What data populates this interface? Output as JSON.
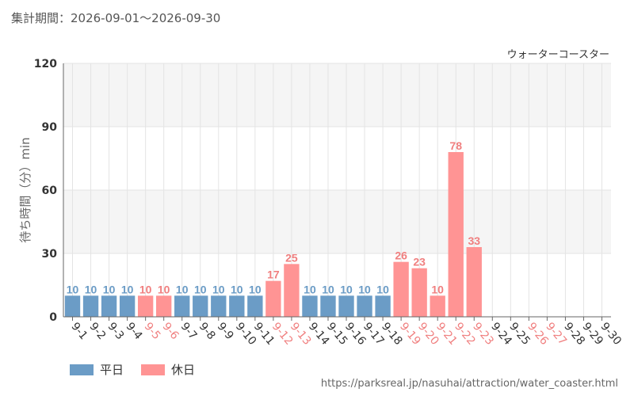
{
  "header": {
    "period": "集計期間：2026-09-01～2026-09-30"
  },
  "footer": {
    "source_url": "https://parksreal.jp/nasuhai/attraction/water_coaster.html"
  },
  "legend": {
    "weekday_label": "平日",
    "holiday_label": "休日"
  },
  "colors": {
    "weekday": "#6b9cc6",
    "holiday": "#ff9494",
    "holiday_text": "#f07f7f",
    "band": "#f5f5f5",
    "grid": "#e4e4e4"
  },
  "chart_data": {
    "type": "bar",
    "title": "ウォーターコースター",
    "ylabel": "待ち時間（分）min",
    "ylim": [
      0,
      120
    ],
    "yticks": [
      0,
      30,
      60,
      90,
      120
    ],
    "grid": true,
    "legend_position": "bottom-left",
    "categories": [
      "9-1",
      "9-2",
      "9-3",
      "9-4",
      "9-5",
      "9-6",
      "9-7",
      "9-8",
      "9-9",
      "9-10",
      "9-11",
      "9-12",
      "9-13",
      "9-14",
      "9-15",
      "9-16",
      "9-17",
      "9-18",
      "9-19",
      "9-20",
      "9-21",
      "9-22",
      "9-23",
      "9-24",
      "9-25",
      "9-26",
      "9-27",
      "9-28",
      "9-29",
      "9-30"
    ],
    "values": [
      10,
      10,
      10,
      10,
      10,
      10,
      10,
      10,
      10,
      10,
      10,
      17,
      25,
      10,
      10,
      10,
      10,
      10,
      26,
      23,
      10,
      78,
      33,
      null,
      null,
      null,
      null,
      null,
      null,
      null
    ],
    "day_type": [
      "weekday",
      "weekday",
      "weekday",
      "weekday",
      "holiday",
      "holiday",
      "weekday",
      "weekday",
      "weekday",
      "weekday",
      "weekday",
      "holiday",
      "holiday",
      "weekday",
      "weekday",
      "weekday",
      "weekday",
      "weekday",
      "holiday",
      "holiday",
      "holiday",
      "holiday",
      "holiday",
      "weekday",
      "weekday",
      "holiday",
      "holiday",
      "weekday",
      "weekday",
      "weekday"
    ]
  }
}
